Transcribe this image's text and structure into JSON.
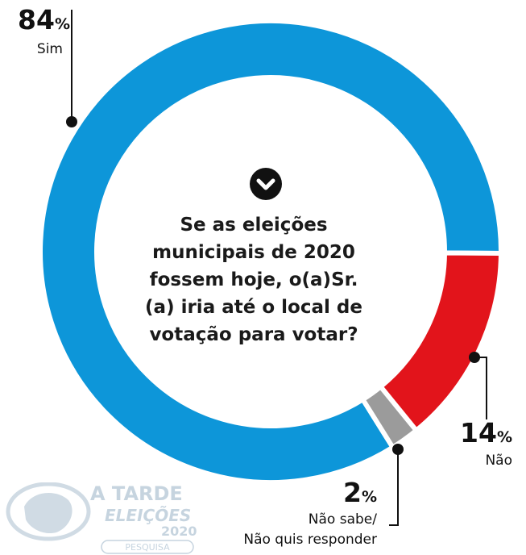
{
  "question": "Se as eleições municipais de 2020 fossem hoje, o(a)Sr.(a) iria até o local de votação para votar?",
  "colors": {
    "sim": "#0d96d9",
    "nao": "#e2141b",
    "nao_sabe": "#9b9b9b"
  },
  "chart_data": {
    "type": "pie",
    "donut": true,
    "title": "",
    "unit": "%",
    "slices": [
      {
        "name": "Sim",
        "value": 84
      },
      {
        "name": "Não",
        "value": 14
      },
      {
        "name": "Não sabe/ Não quis responder",
        "value": 2
      }
    ]
  },
  "labels": {
    "sim": {
      "value": "84",
      "pct": "%",
      "text": "Sim"
    },
    "nao": {
      "value": "14",
      "pct": "%",
      "text": "Não"
    },
    "nao_sabe": {
      "value": "2",
      "pct": "%",
      "line1": "Não sabe/",
      "line2": "Não quis responder"
    }
  },
  "logo": {
    "brand": "A TARDE",
    "product": "ELEIÇÕES",
    "year": "2020",
    "tag": "PESQUISA"
  }
}
